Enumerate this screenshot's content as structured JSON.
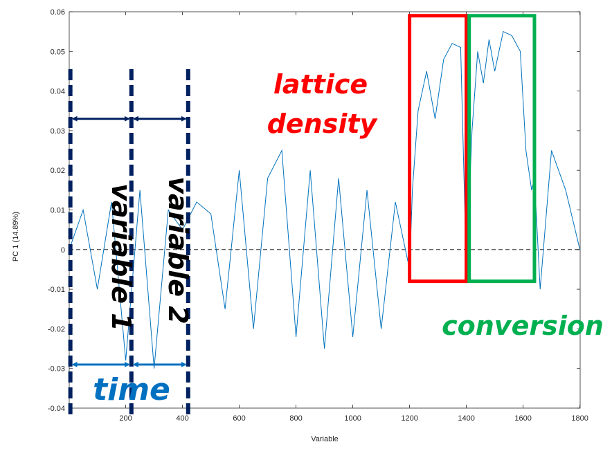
{
  "chart_data": {
    "type": "line",
    "xlabel": "Variable",
    "ylabel": "PC 1 (14.89%)",
    "xlim": [
      1,
      1801
    ],
    "ylim": [
      -0.04,
      0.06
    ],
    "xticks": [
      200,
      400,
      600,
      800,
      1000,
      1200,
      1400,
      1600,
      1800
    ],
    "yticks": [
      -0.04,
      -0.03,
      -0.02,
      -0.01,
      0,
      0.01,
      0.02,
      0.03,
      0.04,
      0.05,
      0.06
    ],
    "ytick_labels": [
      "-0.04",
      "-0.03",
      "-0.02",
      "-0.01",
      "0",
      "0.01",
      "0.02",
      "0.03",
      "0.04",
      "0.05",
      "0.06"
    ],
    "grid": false,
    "zero_line": true,
    "line_color": "#0072bd",
    "series": [
      {
        "color": "#0072bd",
        "x": [
          1,
          50,
          100,
          150,
          200,
          250,
          300,
          350,
          400,
          450,
          500,
          550,
          600,
          650,
          700,
          750,
          800,
          850,
          900,
          950,
          1000,
          1050,
          1100,
          1150,
          1200,
          1210,
          1230,
          1260,
          1290,
          1320,
          1350,
          1380,
          1400,
          1420,
          1440,
          1460,
          1480,
          1500,
          1530,
          1560,
          1590,
          1610,
          1630,
          1640,
          1660,
          1700,
          1750,
          1800
        ],
        "y": [
          0.0,
          0.01,
          -0.01,
          0.012,
          -0.028,
          0.015,
          -0.03,
          0.01,
          0.005,
          0.012,
          0.009,
          -0.015,
          0.02,
          -0.02,
          0.018,
          0.025,
          -0.022,
          0.02,
          -0.025,
          0.018,
          -0.022,
          0.015,
          -0.02,
          0.012,
          -0.005,
          0.015,
          0.035,
          0.045,
          0.033,
          0.048,
          0.052,
          0.051,
          -0.005,
          0.03,
          0.05,
          0.042,
          0.053,
          0.045,
          0.055,
          0.054,
          0.05,
          0.025,
          0.015,
          0.018,
          -0.01,
          0.025,
          0.015,
          0.0
        ]
      }
    ],
    "annotations": [
      {
        "text": "lattice",
        "color": "#ff0000"
      },
      {
        "text": "density",
        "color": "#ff0000"
      },
      {
        "text": "conversion",
        "color": "#00b050"
      },
      {
        "text": "variable 1",
        "color": "#000000"
      },
      {
        "text": "variable 2",
        "color": "#000000"
      },
      {
        "text": "time",
        "color": "#0070c0"
      }
    ],
    "region_boxes": [
      {
        "name": "lattice density",
        "x": [
          1200,
          1400
        ],
        "y": [
          -0.008,
          0.059
        ],
        "color": "#ff0000"
      },
      {
        "name": "conversion",
        "x": [
          1410,
          1640
        ],
        "y": [
          -0.008,
          0.059
        ],
        "color": "#00b050"
      }
    ],
    "dashed_markers": {
      "x": [
        5,
        220,
        420
      ],
      "color": "#002060"
    },
    "range_arrows": [
      {
        "x": [
          5,
          220
        ],
        "y": 0.033,
        "color": "#002060"
      },
      {
        "x": [
          220,
          420
        ],
        "y": 0.033,
        "color": "#002060"
      },
      {
        "x": [
          5,
          220
        ],
        "y": -0.029,
        "color": "#0070c0"
      },
      {
        "x": [
          220,
          420
        ],
        "y": -0.029,
        "color": "#0070c0"
      }
    ]
  }
}
